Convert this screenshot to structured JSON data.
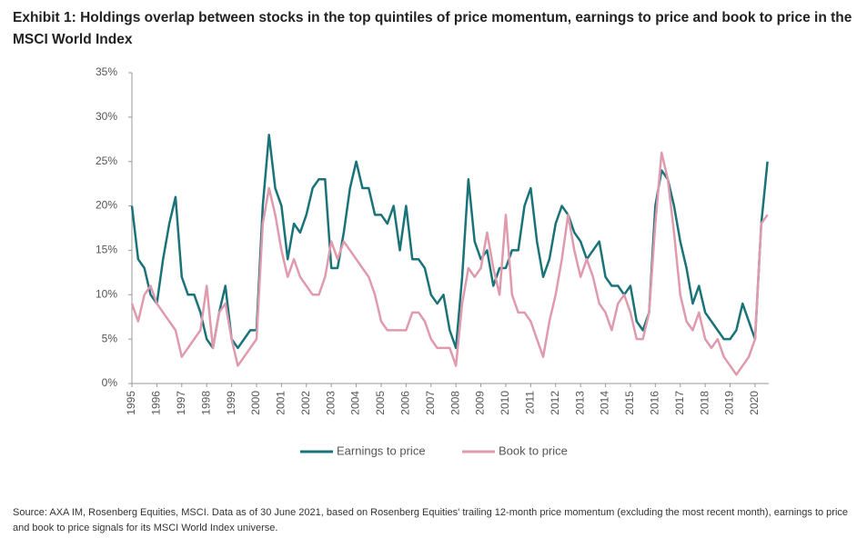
{
  "chart_data": {
    "type": "line",
    "title": "Exhibit 1: Holdings overlap between stocks in the top quintiles of price momentum, earnings to price and book to price in the MSCI World Index",
    "source": "Source: AXA IM, Rosenberg Equities, MSCI. Data as of 30 June 2021, based on Rosenberg Equities' trailing 12-month price momentum (excluding the most recent month), earnings to price and book to price signals for its MSCI World Index universe.",
    "x": [
      1995,
      1995.25,
      1995.5,
      1995.75,
      1996,
      1996.25,
      1996.5,
      1996.75,
      1997,
      1997.25,
      1997.5,
      1997.75,
      1998,
      1998.25,
      1998.5,
      1998.75,
      1999,
      1999.25,
      1999.5,
      1999.75,
      2000,
      2000.25,
      2000.5,
      2000.75,
      2001,
      2001.25,
      2001.5,
      2001.75,
      2002,
      2002.25,
      2002.5,
      2002.75,
      2003,
      2003.25,
      2003.5,
      2003.75,
      2004,
      2004.25,
      2004.5,
      2004.75,
      2005,
      2005.25,
      2005.5,
      2005.75,
      2006,
      2006.25,
      2006.5,
      2006.75,
      2007,
      2007.25,
      2007.5,
      2007.75,
      2008,
      2008.25,
      2008.5,
      2008.75,
      2009,
      2009.25,
      2009.5,
      2009.75,
      2010,
      2010.25,
      2010.5,
      2010.75,
      2011,
      2011.25,
      2011.5,
      2011.75,
      2012,
      2012.25,
      2012.5,
      2012.75,
      2013,
      2013.25,
      2013.5,
      2013.75,
      2014,
      2014.25,
      2014.5,
      2014.75,
      2015,
      2015.25,
      2015.5,
      2015.75,
      2016,
      2016.25,
      2016.5,
      2016.75,
      2017,
      2017.25,
      2017.5,
      2017.75,
      2018,
      2018.25,
      2018.5,
      2018.75,
      2019,
      2019.25,
      2019.5,
      2019.75,
      2020,
      2020.25,
      2020.5
    ],
    "series": [
      {
        "name": "Earnings to price",
        "color": "#1a7378",
        "values": [
          20,
          14,
          13,
          10,
          9,
          14,
          18,
          21,
          12,
          10,
          10,
          8,
          5,
          4,
          8,
          11,
          5,
          4,
          5,
          6,
          6,
          20,
          28,
          22,
          20,
          14,
          18,
          17,
          19,
          22,
          23,
          23,
          13,
          13,
          17,
          22,
          25,
          22,
          22,
          19,
          19,
          18,
          20,
          15,
          20,
          14,
          14,
          13,
          10,
          9,
          10,
          6,
          4,
          12,
          23,
          16,
          14,
          15,
          11,
          13,
          13,
          15,
          15,
          20,
          22,
          16,
          12,
          14,
          18,
          20,
          19,
          17,
          16,
          14,
          15,
          16,
          12,
          11,
          11,
          10,
          11,
          7,
          6,
          8,
          20,
          24,
          23,
          20,
          16,
          13,
          9,
          11,
          8,
          7,
          6,
          5,
          5,
          6,
          9,
          7,
          5,
          18,
          25
        ]
      },
      {
        "name": "Book to price",
        "color": "#e09aae",
        "values": [
          9,
          7,
          10,
          11,
          9,
          8,
          7,
          6,
          3,
          4,
          5,
          6,
          11,
          4,
          8,
          9,
          5,
          2,
          3,
          4,
          5,
          18,
          22,
          19,
          15,
          12,
          14,
          12,
          11,
          10,
          10,
          12,
          16,
          14,
          16,
          15,
          14,
          13,
          12,
          10,
          7,
          6,
          6,
          6,
          6,
          8,
          8,
          7,
          5,
          4,
          4,
          4,
          2,
          9,
          13,
          12,
          13,
          17,
          13,
          10,
          19,
          10,
          8,
          8,
          7,
          5,
          3,
          7,
          10,
          14,
          19,
          15,
          12,
          14,
          12,
          9,
          8,
          6,
          9,
          10,
          8,
          5,
          5,
          8,
          18,
          26,
          23,
          17,
          10,
          7,
          6,
          8,
          5,
          4,
          5,
          3,
          2,
          1,
          2,
          3,
          5,
          18,
          19
        ]
      }
    ],
    "xlim": [
      1995,
      2020.55
    ],
    "xticks": [
      1995,
      1996,
      1997,
      1998,
      1999,
      2000,
      2001,
      2002,
      2003,
      2004,
      2005,
      2006,
      2007,
      2008,
      2009,
      2010,
      2011,
      2012,
      2013,
      2014,
      2015,
      2016,
      2017,
      2018,
      2019,
      2020
    ],
    "ylim": [
      0,
      35
    ],
    "yticks": [
      {
        "value": 0,
        "label": "0%"
      },
      {
        "value": 5,
        "label": "5%"
      },
      {
        "value": 10,
        "label": "10%"
      },
      {
        "value": 15,
        "label": "15%"
      },
      {
        "value": 20,
        "label": "20%"
      },
      {
        "value": 25,
        "label": "25%"
      },
      {
        "value": 30,
        "label": "30%"
      },
      {
        "value": 35,
        "label": "35%"
      }
    ]
  }
}
